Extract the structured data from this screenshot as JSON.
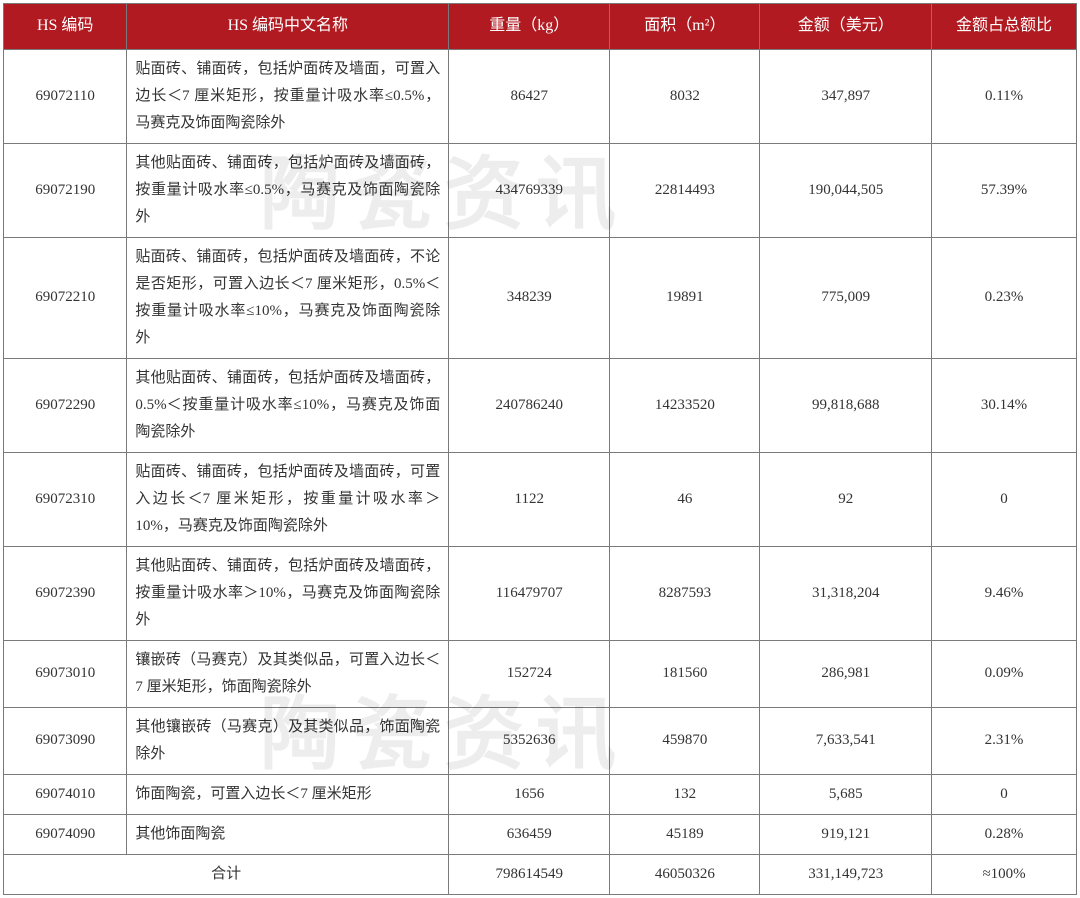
{
  "watermark": "陶瓷资讯",
  "table": {
    "header_bg": "#b01a20",
    "header_fg": "#ffffff",
    "border_color": "#7a7a7a",
    "columns": [
      "HS 编码",
      "HS 编码中文名称",
      "重量（kg）",
      "面积（m²）",
      "金额（美元）",
      "金额占总额比"
    ],
    "rows": [
      {
        "hs": "69072110",
        "name": "贴面砖、铺面砖，包括炉面砖及墙面，可置入边长＜7 厘米矩形，按重量计吸水率≤0.5%，马赛克及饰面陶瓷除外",
        "weight": "86427",
        "area": "8032",
        "amount": "347,897",
        "pct": "0.11%"
      },
      {
        "hs": "69072190",
        "name": "其他贴面砖、铺面砖，包括炉面砖及墙面砖，按重量计吸水率≤0.5%，马赛克及饰面陶瓷除外",
        "weight": "434769339",
        "area": "22814493",
        "amount": "190,044,505",
        "pct": "57.39%"
      },
      {
        "hs": "69072210",
        "name": "贴面砖、铺面砖，包括炉面砖及墙面砖，不论是否矩形，可置入边长＜7 厘米矩形，0.5%＜按重量计吸水率≤10%，马赛克及饰面陶瓷除外",
        "weight": "348239",
        "area": "19891",
        "amount": "775,009",
        "pct": "0.23%"
      },
      {
        "hs": "69072290",
        "name": "其他贴面砖、铺面砖，包括炉面砖及墙面砖，0.5%＜按重量计吸水率≤10%，马赛克及饰面陶瓷除外",
        "weight": "240786240",
        "area": "14233520",
        "amount": "99,818,688",
        "pct": "30.14%"
      },
      {
        "hs": "69072310",
        "name": "贴面砖、铺面砖，包括炉面砖及墙面砖，可置入边长＜7 厘米矩形，按重量计吸水率＞10%，马赛克及饰面陶瓷除外",
        "weight": "1122",
        "area": "46",
        "amount": "92",
        "pct": "0"
      },
      {
        "hs": "69072390",
        "name": "其他贴面砖、铺面砖，包括炉面砖及墙面砖，按重量计吸水率＞10%，马赛克及饰面陶瓷除外",
        "weight": "116479707",
        "area": "8287593",
        "amount": "31,318,204",
        "pct": "9.46%"
      },
      {
        "hs": "69073010",
        "name": "镶嵌砖（马赛克）及其类似品，可置入边长＜7 厘米矩形，饰面陶瓷除外",
        "weight": "152724",
        "area": "181560",
        "amount": "286,981",
        "pct": "0.09%"
      },
      {
        "hs": "69073090",
        "name": "其他镶嵌砖（马赛克）及其类似品，饰面陶瓷除外",
        "weight": "5352636",
        "area": "459870",
        "amount": "7,633,541",
        "pct": "2.31%"
      },
      {
        "hs": "69074010",
        "name": "饰面陶瓷，可置入边长＜7 厘米矩形",
        "weight": "1656",
        "area": "132",
        "amount": "5,685",
        "pct": "0"
      },
      {
        "hs": "69074090",
        "name": "其他饰面陶瓷",
        "weight": "636459",
        "area": "45189",
        "amount": "919,121",
        "pct": "0.28%"
      }
    ],
    "total": {
      "label": "合计",
      "weight": "798614549",
      "area": "46050326",
      "amount": "331,149,723",
      "pct": "≈100%"
    }
  }
}
